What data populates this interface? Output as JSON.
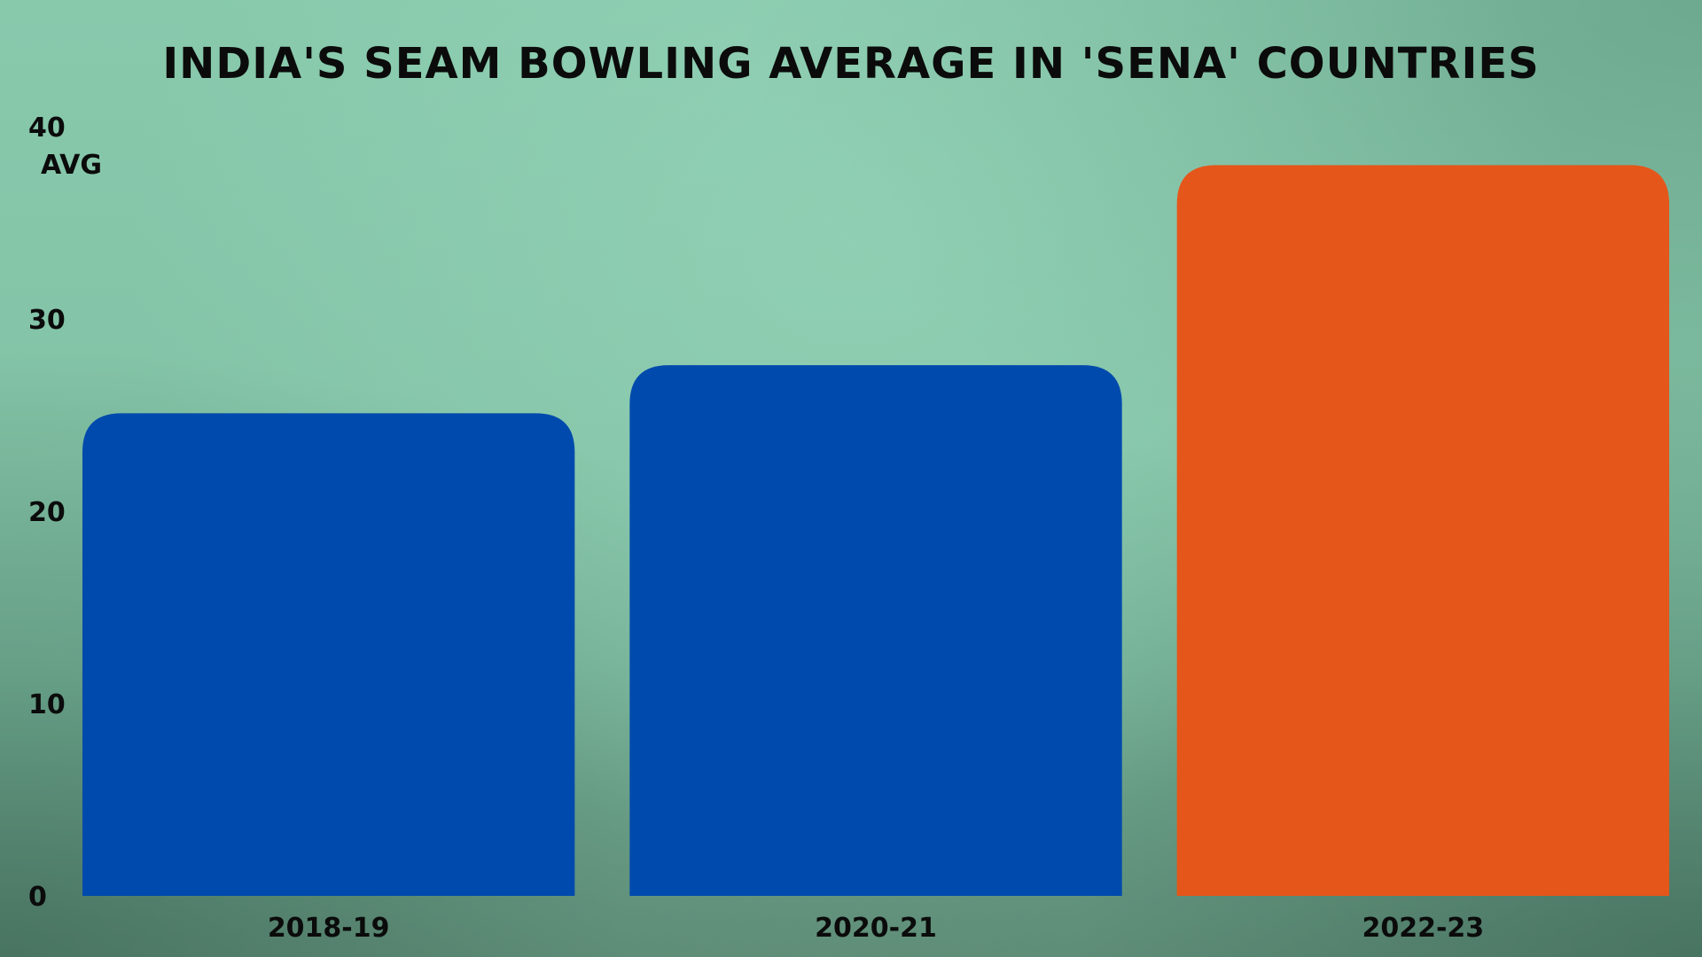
{
  "chart_data": {
    "type": "bar",
    "title": "INDIA'S SEAM BOWLING AVERAGE IN 'SENA' COUNTRIES",
    "ylabel": "AVG",
    "xlabel": "",
    "categories": [
      "2018-19",
      "2020-21",
      "2022-23"
    ],
    "values": [
      25.1,
      27.6,
      38.0
    ],
    "colors": [
      "#004aad",
      "#004aad",
      "#e5561a"
    ],
    "ylim": [
      0,
      40
    ],
    "yticks": [
      "0",
      "10",
      "20",
      "30",
      "40"
    ],
    "grid": false,
    "legend": "none"
  }
}
